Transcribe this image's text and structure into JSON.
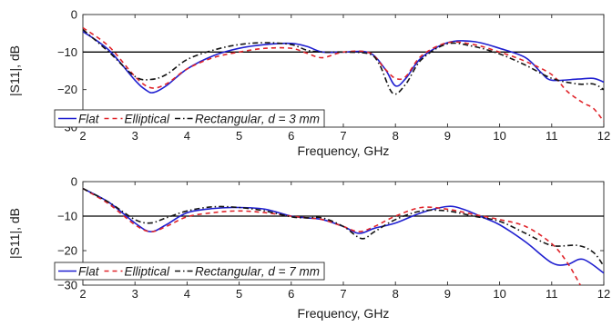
{
  "chart_data": [
    {
      "type": "line",
      "title": "",
      "xlabel": "Frequency, GHz",
      "ylabel": "|S11|, dB",
      "xlim": [
        2,
        12
      ],
      "ylim": [
        -30,
        0
      ],
      "xticks": [
        "2",
        "3",
        "4",
        "5",
        "6",
        "7",
        "8",
        "9",
        "10",
        "11",
        "12"
      ],
      "yticks": [
        "0",
        "−10",
        "−20",
        "−30"
      ],
      "grid": false,
      "reference_line": {
        "y": -10,
        "color": "#000000"
      },
      "legend": {
        "placement": "bottom-left",
        "suffix_prefix": ", ",
        "suffix_var": "d",
        "suffix_value": " = 3 mm"
      },
      "series": [
        {
          "name": "Flat",
          "color": "#1f1fd0",
          "dash": "solid",
          "x": [
            2,
            2.5,
            3,
            3.2,
            3.35,
            3.6,
            4,
            4.5,
            5,
            5.5,
            6,
            6.3,
            6.6,
            7,
            7.5,
            7.8,
            8,
            8.2,
            8.5,
            9,
            9.5,
            10,
            10.5,
            10.8,
            11,
            11.5,
            11.8,
            12
          ],
          "y": [
            -4.5,
            -9.5,
            -17.5,
            -20,
            -20.8,
            -19,
            -14.5,
            -11,
            -9,
            -8,
            -7.7,
            -8.5,
            -10,
            -10,
            -10.2,
            -14.5,
            -19,
            -17,
            -11.5,
            -7.5,
            -7.2,
            -9,
            -11.5,
            -15.5,
            -17.5,
            -17.2,
            -17,
            -18
          ]
        },
        {
          "name": "Elliptical",
          "color": "#e0242a",
          "dash": "5,4",
          "x": [
            2,
            2.5,
            3,
            3.3,
            3.6,
            4,
            4.5,
            5,
            5.5,
            6,
            6.3,
            6.6,
            7,
            7.5,
            7.8,
            8,
            8.2,
            8.5,
            9,
            9.5,
            10,
            10.5,
            11,
            11.3,
            11.6,
            11.8,
            12
          ],
          "y": [
            -3.5,
            -8.5,
            -16.5,
            -19.5,
            -18.5,
            -14.5,
            -11.5,
            -10,
            -9,
            -9,
            -10.3,
            -11.5,
            -10,
            -10.2,
            -14.5,
            -17,
            -16.5,
            -11,
            -7.5,
            -8,
            -10,
            -12.5,
            -16,
            -20.5,
            -23.5,
            -25,
            -28.5
          ]
        },
        {
          "name": "Rectangular",
          "color": "#141414",
          "dash": "6,3,1.5,3",
          "x": [
            2,
            2.5,
            3,
            3.3,
            3.6,
            4,
            4.5,
            5,
            5.5,
            6,
            6.3,
            6.6,
            7,
            7.5,
            7.7,
            7.95,
            8.2,
            8.5,
            9,
            9.5,
            10,
            10.5,
            11,
            11.5,
            11.8,
            12
          ],
          "y": [
            -4,
            -10,
            -16.5,
            -17.3,
            -16,
            -12,
            -9.5,
            -8,
            -7.5,
            -8,
            -9.5,
            -10,
            -10,
            -10.5,
            -13.5,
            -21,
            -18.5,
            -12,
            -7.8,
            -8.5,
            -10.5,
            -13.5,
            -17,
            -18.5,
            -18.5,
            -20
          ]
        }
      ]
    },
    {
      "type": "line",
      "title": "",
      "xlabel": "Frequency, GHz",
      "ylabel": "|S11|, dB",
      "xlim": [
        2,
        12
      ],
      "ylim": [
        -30,
        0
      ],
      "xticks": [
        "2",
        "3",
        "4",
        "5",
        "6",
        "7",
        "8",
        "9",
        "10",
        "11",
        "12"
      ],
      "yticks": [
        "0",
        "−10",
        "−20",
        "−30"
      ],
      "grid": false,
      "reference_line": {
        "y": -10,
        "color": "#000000"
      },
      "legend": {
        "placement": "bottom-left",
        "suffix_prefix": ", ",
        "suffix_var": "d",
        "suffix_value": " = 7 mm"
      },
      "series": [
        {
          "name": "Flat",
          "color": "#1f1fd0",
          "dash": "solid",
          "x": [
            2,
            2.5,
            3,
            3.3,
            3.6,
            4,
            4.5,
            5,
            5.5,
            6,
            6.3,
            6.6,
            7,
            7.3,
            7.6,
            8,
            8.5,
            9,
            9.3,
            9.7,
            10,
            10.5,
            11,
            11.3,
            11.6,
            12
          ],
          "y": [
            -2,
            -6,
            -12,
            -14.5,
            -12.5,
            -9,
            -7.8,
            -7.5,
            -8,
            -10,
            -10.5,
            -11,
            -13,
            -15,
            -13.5,
            -12,
            -9,
            -7.2,
            -8,
            -10.5,
            -12.5,
            -17.5,
            -23.5,
            -24,
            -22.5,
            -26.5
          ]
        },
        {
          "name": "Elliptical",
          "color": "#e0242a",
          "dash": "5,4",
          "x": [
            2,
            2.5,
            3,
            3.3,
            3.6,
            4,
            4.5,
            5,
            5.5,
            6,
            6.3,
            6.6,
            7,
            7.3,
            7.6,
            8,
            8.5,
            9,
            9.5,
            10,
            10.5,
            11,
            11.3,
            11.55
          ],
          "y": [
            -2,
            -6.5,
            -12.5,
            -14.5,
            -13,
            -10.2,
            -9,
            -8.5,
            -9,
            -10,
            -10.5,
            -11,
            -13,
            -14.5,
            -13,
            -10,
            -7.5,
            -8,
            -9.5,
            -11,
            -13,
            -18,
            -23.5,
            -30
          ]
        },
        {
          "name": "Rectangular",
          "color": "#141414",
          "dash": "6,3,1.5,3",
          "x": [
            2,
            2.5,
            3,
            3.3,
            3.6,
            4,
            4.5,
            5,
            5.5,
            6,
            6.3,
            6.6,
            7,
            7.35,
            7.6,
            8,
            8.5,
            9,
            9.5,
            10,
            10.5,
            11,
            11.5,
            11.8,
            12
          ],
          "y": [
            -2,
            -6,
            -11,
            -12,
            -10.5,
            -8.5,
            -7.3,
            -7.5,
            -8.5,
            -10.2,
            -10.5,
            -10.5,
            -13,
            -16.5,
            -14.5,
            -11,
            -8.5,
            -8.5,
            -10,
            -11.5,
            -15,
            -18.5,
            -18.5,
            -20.5,
            -24.5
          ]
        }
      ]
    }
  ]
}
